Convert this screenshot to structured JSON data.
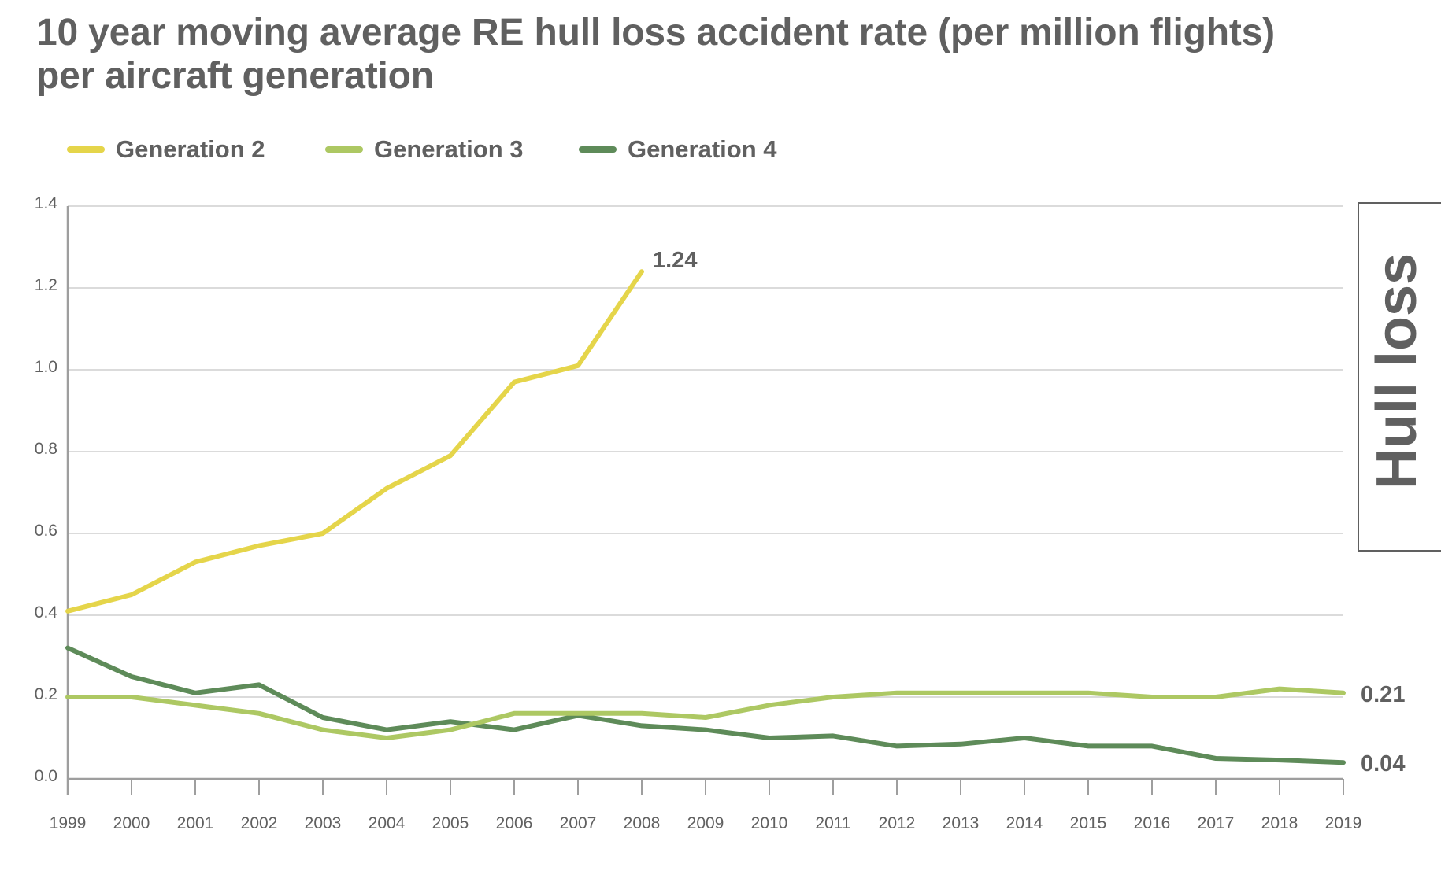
{
  "chart_data": {
    "type": "line",
    "title": "10 year moving average RE hull loss accident rate (per million flights) per aircraft generation",
    "title_lines": [
      "10 year moving average RE hull loss accident rate (per million flights)",
      "per aircraft generation"
    ],
    "xlabel": "",
    "ylabel": "",
    "x": [
      "1999",
      "2000",
      "2001",
      "2002",
      "2003",
      "2004",
      "2005",
      "2006",
      "2007",
      "2008",
      "2009",
      "2010",
      "2011",
      "2012",
      "2013",
      "2014",
      "2015",
      "2016",
      "2017",
      "2018",
      "2019"
    ],
    "ylim": [
      0,
      1.4
    ],
    "yticks": [
      "0.0",
      "0.2",
      "0.4",
      "0.6",
      "0.8",
      "1.0",
      "1.2",
      "1.4"
    ],
    "grid": true,
    "legend_position": "top-left",
    "series": [
      {
        "name": "Generation 2",
        "color": "#e5d54a",
        "values": [
          0.41,
          0.45,
          0.53,
          0.57,
          0.6,
          0.71,
          0.79,
          0.97,
          1.01,
          1.24,
          null,
          null,
          null,
          null,
          null,
          null,
          null,
          null,
          null,
          null,
          null
        ],
        "end_label": "1.24"
      },
      {
        "name": "Generation 3",
        "color": "#adc863",
        "values": [
          0.2,
          0.2,
          0.18,
          0.16,
          0.12,
          0.1,
          0.12,
          0.16,
          0.16,
          0.16,
          0.15,
          0.18,
          0.2,
          0.21,
          0.21,
          0.21,
          0.21,
          0.2,
          0.2,
          0.22,
          0.21
        ],
        "end_label": "0.21"
      },
      {
        "name": "Generation 4",
        "color": "#5e8b59",
        "values": [
          0.32,
          0.25,
          0.21,
          0.23,
          0.15,
          0.12,
          0.14,
          0.12,
          0.155,
          0.13,
          0.12,
          0.1,
          0.105,
          0.08,
          0.085,
          0.1,
          0.08,
          0.08,
          0.05,
          0.046,
          0.04
        ],
        "end_label": "0.04"
      }
    ],
    "annotations": [
      "Hull loss"
    ]
  },
  "side_panel": {
    "label": "Hull loss"
  }
}
